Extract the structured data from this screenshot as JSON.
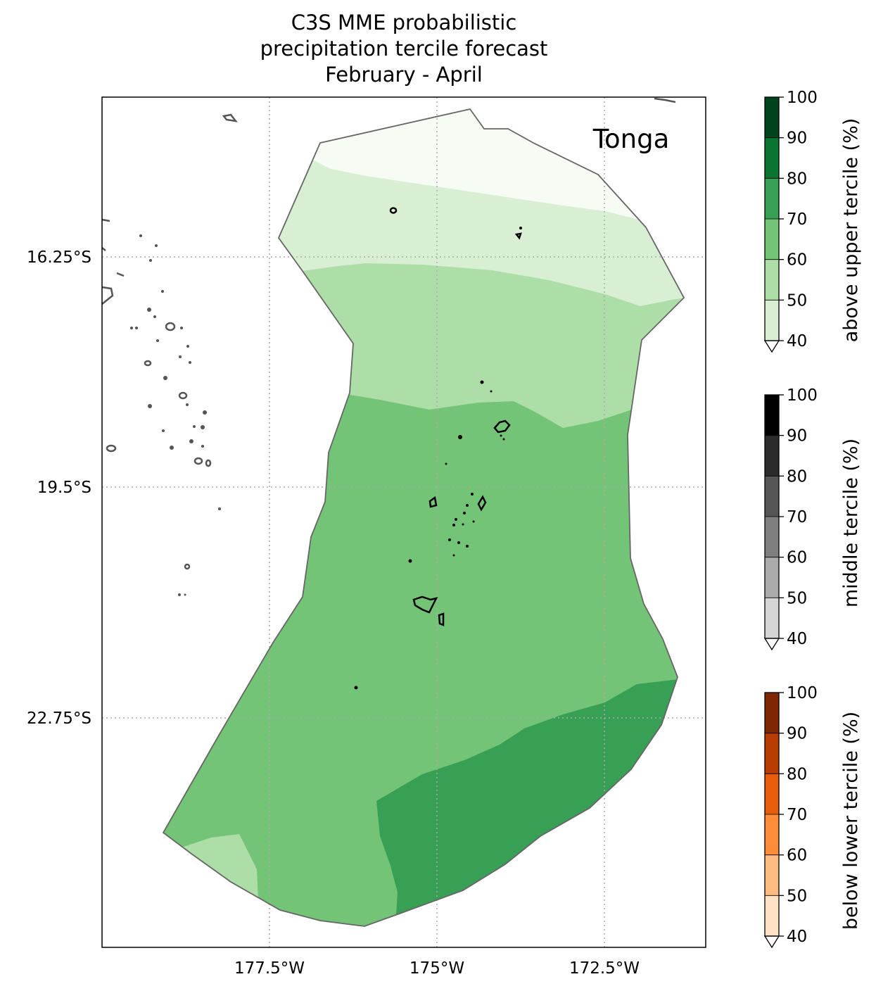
{
  "title": {
    "line1": "C3S MME probabilistic",
    "line2": "precipitation tercile forecast",
    "line3": "February - April"
  },
  "map": {
    "region_label": "Tonga",
    "lat_labels": [
      "16.25°S",
      "19.5°S",
      "22.75°S"
    ],
    "lon_labels": [
      "177.5°W",
      "175°W",
      "172.5°W"
    ]
  },
  "colorbars": [
    {
      "label": "above upper tercile (%)",
      "ticks": [
        "100",
        "90",
        "80",
        "70",
        "60",
        "50",
        "40"
      ],
      "colors": [
        "#00441b",
        "#0a7431",
        "#38a055",
        "#73c476",
        "#addea7",
        "#d9efd3"
      ]
    },
    {
      "label": "middle tercile (%)",
      "ticks": [
        "100",
        "90",
        "80",
        "70",
        "60",
        "50",
        "40"
      ],
      "colors": [
        "#000000",
        "#2b2b2b",
        "#555555",
        "#7f7f7f",
        "#aaaaaa",
        "#d5d5d5"
      ]
    },
    {
      "label": "below lower tercile (%)",
      "ticks": [
        "100",
        "90",
        "80",
        "70",
        "60",
        "50",
        "40"
      ],
      "colors": [
        "#7f2704",
        "#b73c02",
        "#e75d0c",
        "#fd8c3b",
        "#fdbb81",
        "#fee1c5"
      ]
    }
  ],
  "colors": {
    "lt40": "#f6fbf3",
    "p40_50": "#d9efd3",
    "p50_60": "#addea7",
    "p60_70": "#73c476",
    "p70_80": "#38a055",
    "outline": "#666666",
    "coast": "#555555"
  }
}
